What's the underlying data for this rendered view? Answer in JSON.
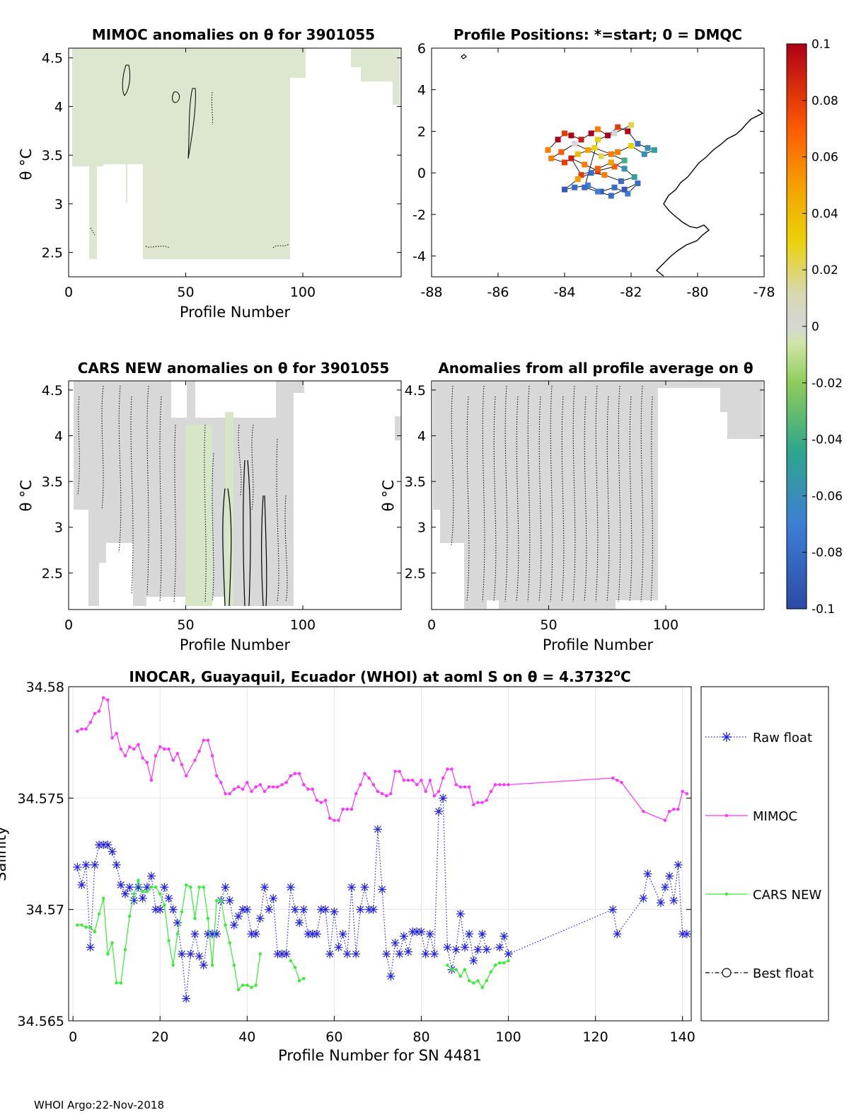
{
  "footer": "WHOI Argo:22-Nov-2018",
  "colors": {
    "raw_float": "#1f1fe6",
    "mimoc": "#ff33ff",
    "cars": "#33ee33",
    "anomaly_fill": "#d8d8d8",
    "anomaly_fill_mimoc": "#dfe8d0"
  },
  "colorbar": {
    "ticks": [
      "0.1",
      "0.08",
      "0.06",
      "0.04",
      "0.02",
      "0",
      "-0.02",
      "-0.04",
      "-0.06",
      "-0.08",
      "-0.1"
    ],
    "range": [
      -0.1,
      0.1
    ]
  },
  "chart_data": [
    {
      "id": "mimoc",
      "type": "heatmap",
      "title": "MIMOC anomalies on θ  for 3901055",
      "xlabel": "Profile Number",
      "ylabel": "θ °C",
      "xlim": [
        0,
        142
      ],
      "ylim": [
        2.25,
        4.6
      ],
      "xticks": [
        "0",
        "50",
        "100"
      ],
      "yticks": [
        "2.5",
        "3",
        "3.5",
        "4",
        "4.5"
      ]
    },
    {
      "id": "positions",
      "type": "scatter",
      "title": "Profile Positions: *=start; 0 = DMQC",
      "xlim": [
        -88,
        -78
      ],
      "ylim": [
        -5,
        6
      ],
      "xticks": [
        "-88",
        "-86",
        "-84",
        "-82",
        "-80",
        "-78"
      ],
      "yticks": [
        "-4",
        "-2",
        "0",
        "2",
        "4",
        "6"
      ],
      "lon": [
        -84.5,
        -84.2,
        -84.0,
        -83.8,
        -83.5,
        -83.2,
        -83.0,
        -82.7,
        -82.4,
        -82.1,
        -81.8,
        -81.5,
        -81.3,
        -81.6,
        -82.0,
        -82.4,
        -82.9,
        -83.3,
        -83.7,
        -84.1,
        -84.4,
        -84.0,
        -83.6,
        -83.1,
        -82.6,
        -82.2,
        -82.5,
        -83.0,
        -83.4,
        -83.8,
        -83.5,
        -83.0,
        -82.6,
        -82.2,
        -81.9,
        -82.3,
        -82.8,
        -83.2,
        -83.6,
        -84.0,
        -83.7,
        -83.3,
        -82.9,
        -82.5,
        -82.1,
        -81.8,
        -82.2,
        -82.6,
        -83.0,
        -83.4,
        -83.0,
        -82.5,
        -82.0
      ],
      "lat": [
        1.1,
        1.6,
        1.9,
        1.8,
        1.6,
        1.9,
        2.1,
        1.8,
        2.2,
        2.0,
        1.4,
        1.2,
        1.1,
        0.9,
        1.3,
        1.0,
        0.8,
        1.1,
        1.4,
        1.0,
        0.7,
        0.5,
        0.9,
        1.2,
        0.9,
        0.6,
        0.3,
        0.1,
        0.4,
        0.7,
        -0.1,
        0.2,
        0.5,
        0.2,
        -0.2,
        -0.4,
        -0.1,
        0.0,
        -0.3,
        -0.8,
        -0.7,
        -0.6,
        -0.9,
        -0.7,
        -1.0,
        -0.5,
        -0.8,
        -1.1,
        -0.9,
        -0.7,
        1.6,
        1.9,
        2.3
      ],
      "color_values": [
        0.06,
        0.1,
        0.08,
        0.1,
        0.09,
        0.1,
        0.06,
        0.1,
        0.08,
        0.1,
        -0.08,
        -0.06,
        -0.05,
        -0.06,
        0.03,
        0.06,
        0.02,
        0.05,
        0.0,
        0.07,
        0.06,
        0.08,
        0.04,
        0.03,
        0.06,
        -0.04,
        0.07,
        0.08,
        0.06,
        0.09,
        0.08,
        0.07,
        0.05,
        -0.06,
        -0.05,
        -0.08,
        0.06,
        -0.08,
        0.05,
        -0.09,
        -0.08,
        -0.07,
        -0.09,
        -0.08,
        -0.07,
        -0.08,
        -0.09,
        -0.08,
        -0.07,
        -0.08,
        0.03,
        0.0,
        0.02
      ]
    },
    {
      "id": "cars",
      "type": "heatmap",
      "title": "CARS NEW anomalies on θ for 3901055",
      "xlabel": "Profile Number",
      "ylabel": "θ °C",
      "xlim": [
        0,
        142
      ],
      "ylim": [
        2.1,
        4.6
      ],
      "xticks": [
        "0",
        "50",
        "100"
      ],
      "yticks": [
        "2.5",
        "3",
        "3.5",
        "4",
        "4.5"
      ]
    },
    {
      "id": "allprofile",
      "type": "heatmap",
      "title": "Anomalies from all profile average on θ",
      "xlabel": "Profile Number",
      "ylabel": "θ °C",
      "xlim": [
        0,
        142
      ],
      "ylim": [
        2.1,
        4.6
      ],
      "xticks": [
        "0",
        "50",
        "100"
      ],
      "yticks": [
        "2.5",
        "3",
        "3.5",
        "4",
        "4.5"
      ]
    },
    {
      "id": "salinity",
      "type": "line",
      "title": "INOCAR, Guayaquil, Ecuador (WHOI) at aoml S on θ = 4.3732",
      "title_sup": "o",
      "title_end": "C",
      "xlabel": "Profile Number for SN 4481",
      "ylabel": "Salinity",
      "xlim": [
        -1,
        142
      ],
      "ylim": [
        34.565,
        34.58
      ],
      "xticks": [
        0,
        20,
        40,
        60,
        80,
        100,
        120,
        140
      ],
      "yticks": [
        34.565,
        34.57,
        34.575,
        34.58
      ],
      "ytick_labels": [
        "34.565",
        "34.57",
        "34.575",
        "34.58"
      ],
      "legend": [
        "Raw float",
        "MIMOC",
        "CARS NEW",
        "Best float"
      ],
      "series": [
        {
          "name": "Raw float",
          "x": [
            1,
            2,
            3,
            4,
            5,
            6,
            7,
            8,
            9,
            10,
            11,
            12,
            13,
            14,
            15,
            16,
            17,
            18,
            19,
            20,
            21,
            22,
            23,
            24,
            25,
            26,
            27,
            28,
            29,
            30,
            31,
            32,
            33,
            34,
            35,
            36,
            37,
            38,
            39,
            40,
            41,
            42,
            43,
            44,
            45,
            46,
            47,
            48,
            49,
            50,
            51,
            52,
            53,
            54,
            55,
            56,
            57,
            58,
            59,
            60,
            61,
            62,
            63,
            64,
            65,
            66,
            67,
            68,
            69,
            70,
            71,
            72,
            73,
            74,
            75,
            76,
            77,
            78,
            79,
            80,
            81,
            82,
            83,
            84,
            85,
            86,
            87,
            88,
            89,
            90,
            91,
            92,
            93,
            94,
            95,
            98,
            99,
            100,
            124,
            125,
            131,
            132,
            135,
            136,
            137,
            138,
            139,
            140,
            141
          ],
          "y": [
            34.5719,
            34.5711,
            34.572,
            34.5683,
            34.572,
            34.5729,
            34.5729,
            34.5729,
            34.5726,
            34.572,
            34.5711,
            34.5707,
            34.571,
            34.5704,
            34.571,
            34.5705,
            34.571,
            34.5715,
            34.57,
            34.57,
            34.571,
            34.5705,
            34.57,
            34.5694,
            34.568,
            34.566,
            34.568,
            34.5689,
            34.5679,
            34.5675,
            34.5689,
            34.5689,
            34.5689,
            34.5704,
            34.571,
            34.5704,
            34.5693,
            34.5697,
            34.57,
            34.57,
            34.5689,
            34.5689,
            34.5696,
            34.571,
            34.57,
            34.5705,
            34.568,
            34.568,
            34.568,
            34.571,
            34.57,
            34.5694,
            34.57,
            34.5689,
            34.5689,
            34.5689,
            34.57,
            34.57,
            34.568,
            34.5699,
            34.5683,
            34.5689,
            34.568,
            34.571,
            34.568,
            34.57,
            34.571,
            34.57,
            34.57,
            34.5736,
            34.5709,
            34.568,
            34.567,
            34.5685,
            34.568,
            34.5688,
            34.5681,
            34.569,
            34.569,
            34.569,
            34.568,
            34.5689,
            34.568,
            34.5744,
            34.575,
            34.5683,
            34.5673,
            34.5682,
            34.5698,
            34.5683,
            34.5689,
            34.5677,
            34.5682,
            34.5689,
            34.5682,
            34.5683,
            34.5688,
            34.568,
            34.57,
            34.5689,
            34.5705,
            34.5716,
            34.5703,
            34.571,
            34.5715,
            34.5704,
            34.572,
            34.5689,
            34.5689
          ]
        },
        {
          "name": "MIMOC",
          "x": [
            1,
            2,
            3,
            4,
            5,
            6,
            7,
            8,
            9,
            10,
            11,
            12,
            13,
            14,
            15,
            16,
            17,
            18,
            19,
            20,
            21,
            22,
            23,
            24,
            25,
            26,
            28,
            29,
            30,
            31,
            32,
            33,
            34,
            35,
            36,
            37,
            38,
            39,
            40,
            41,
            42,
            43,
            44,
            45,
            46,
            47,
            48,
            49,
            50,
            51,
            52,
            53,
            54,
            55,
            56,
            57,
            58,
            59,
            60,
            61,
            62,
            63,
            64,
            65,
            66,
            67,
            68,
            69,
            70,
            71,
            72,
            73,
            74,
            75,
            76,
            77,
            78,
            79,
            80,
            81,
            82,
            83,
            84,
            85,
            86,
            87,
            88,
            89,
            90,
            91,
            92,
            93,
            94,
            95,
            96,
            97,
            98,
            99,
            100,
            124,
            125,
            126,
            131,
            136,
            137,
            138,
            139,
            140,
            141
          ],
          "y": [
            34.578,
            34.5781,
            34.5781,
            34.5784,
            34.5788,
            34.5789,
            34.5795,
            34.5794,
            34.5777,
            34.5779,
            34.5772,
            34.5769,
            34.5773,
            34.5772,
            34.5774,
            34.5768,
            34.5766,
            34.5758,
            34.5769,
            34.5773,
            34.5772,
            34.5772,
            34.5767,
            34.577,
            34.5765,
            34.576,
            34.5767,
            34.5771,
            34.5776,
            34.5776,
            34.5769,
            34.576,
            34.5757,
            34.5752,
            34.5752,
            34.5754,
            34.5755,
            34.5754,
            34.5757,
            34.5753,
            34.5755,
            34.5756,
            34.5753,
            34.5755,
            34.5755,
            34.5755,
            34.5756,
            34.5757,
            34.576,
            34.5761,
            34.5761,
            34.5756,
            34.5754,
            34.5754,
            34.5749,
            34.5748,
            34.5749,
            34.5741,
            34.574,
            34.574,
            34.5745,
            34.5745,
            34.5745,
            34.5752,
            34.5756,
            34.5761,
            34.5759,
            34.5756,
            34.5753,
            34.5752,
            34.5751,
            34.5752,
            34.5762,
            34.5762,
            34.5758,
            34.5758,
            34.5758,
            34.5756,
            34.5758,
            34.5753,
            34.5758,
            34.5751,
            34.5753,
            34.5759,
            34.5763,
            34.5763,
            34.5756,
            34.5755,
            34.5755,
            34.5755,
            34.5747,
            34.5748,
            34.5748,
            34.5749,
            34.5753,
            34.5756,
            34.5756,
            34.5756,
            34.5756,
            34.5759,
            34.5758,
            34.5757,
            34.5744,
            34.574,
            34.5744,
            34.5745,
            34.5745,
            34.5753,
            34.5752
          ]
        },
        {
          "name": "CARS NEW",
          "x": [
            1,
            2,
            3,
            4,
            5,
            6,
            7,
            8,
            9,
            10,
            11,
            12,
            13,
            14,
            15,
            16,
            17,
            18,
            19,
            20,
            21,
            22,
            23,
            24,
            25,
            26,
            27,
            28,
            29,
            30,
            31,
            32,
            33,
            34,
            35,
            36,
            37,
            38,
            39,
            40,
            41,
            42,
            43,
            50,
            51,
            52,
            53,
            86,
            87,
            88,
            89,
            90,
            91,
            92,
            93,
            94,
            95,
            96,
            97,
            98,
            99,
            100
          ],
          "y": [
            34.5693,
            34.5693,
            34.5692,
            34.5692,
            34.569,
            34.5698,
            34.5705,
            34.568,
            34.5685,
            34.5667,
            34.5667,
            34.5682,
            34.5697,
            34.5707,
            34.5713,
            34.5708,
            34.5708,
            34.571,
            34.571,
            34.5707,
            34.5702,
            34.5686,
            34.5675,
            34.5689,
            34.5699,
            34.5711,
            34.571,
            34.5696,
            34.571,
            34.571,
            34.5696,
            34.5675,
            34.5704,
            34.5704,
            34.5693,
            34.5685,
            34.5675,
            34.5664,
            34.5666,
            34.5666,
            34.5665,
            34.5666,
            34.568,
            34.5677,
            34.5674,
            34.5668,
            34.5669,
            34.5675,
            34.5673,
            34.5673,
            34.567,
            34.5673,
            34.5668,
            34.5667,
            34.5668,
            34.5665,
            34.5668,
            34.5672,
            34.5675,
            34.5676,
            34.5676,
            34.5677
          ]
        }
      ]
    }
  ]
}
